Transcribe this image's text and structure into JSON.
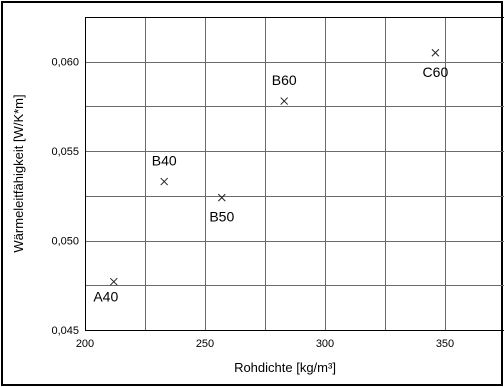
{
  "chart_data": {
    "type": "scatter",
    "title": "",
    "xlabel": "Rohdichte [kg/m³]",
    "ylabel": "Wärmeleitfähigkeit [W/K*m]",
    "xlim": [
      200,
      375
    ],
    "ylim": [
      0.045,
      0.0625
    ],
    "xticks": [
      200,
      250,
      300,
      350
    ],
    "xtick_labels": [
      "200",
      "250",
      "300",
      "350"
    ],
    "xgrid": [
      200,
      225,
      250,
      275,
      300,
      325,
      350,
      375
    ],
    "yticks": [
      0.045,
      0.05,
      0.055,
      0.06
    ],
    "ytick_labels": [
      "0,045",
      "0,050",
      "0,055",
      "0,060"
    ],
    "ygrid": [
      0.045,
      0.0475,
      0.05,
      0.0525,
      0.055,
      0.0575,
      0.06,
      0.0625
    ],
    "grid": true,
    "marker": "x",
    "points": [
      {
        "label": "A40",
        "x": 212,
        "y": 0.0477,
        "label_pos": "below-left"
      },
      {
        "label": "B40",
        "x": 233,
        "y": 0.0533,
        "label_pos": "above"
      },
      {
        "label": "B50",
        "x": 257,
        "y": 0.0524,
        "label_pos": "below"
      },
      {
        "label": "B60",
        "x": 283,
        "y": 0.0578,
        "label_pos": "above"
      },
      {
        "label": "C60",
        "x": 346,
        "y": 0.0605,
        "label_pos": "below"
      }
    ]
  }
}
